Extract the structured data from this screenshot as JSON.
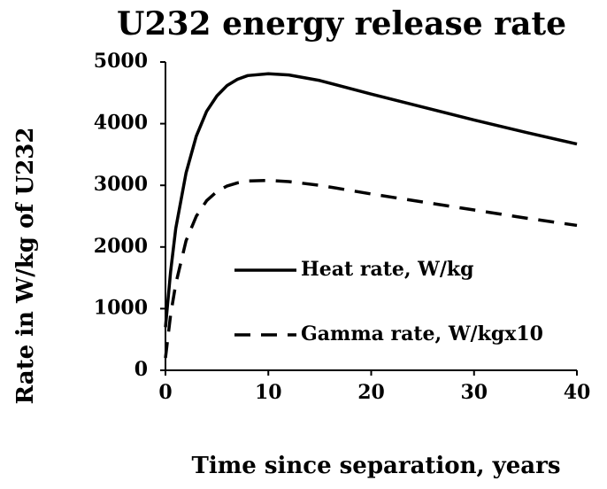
{
  "chart_data": {
    "type": "line",
    "title": "U232 energy release rate",
    "x_label": "Time since separation, years",
    "y_label": "Rate in W/kg of U232",
    "x": [
      0,
      0.5,
      1,
      2,
      3,
      4,
      5,
      6,
      7,
      8,
      10,
      12,
      15,
      20,
      25,
      30,
      35,
      40
    ],
    "series": [
      {
        "name": "Heat rate, W/kg",
        "color": "#000000",
        "dash": "solid",
        "values": [
          700,
          1600,
          2300,
          3200,
          3800,
          4200,
          4450,
          4620,
          4720,
          4780,
          4810,
          4790,
          4700,
          4480,
          4270,
          4060,
          3860,
          3670
        ]
      },
      {
        "name": "Gamma rate, W/kgx10",
        "color": "#000000",
        "dash": "dashed",
        "values": [
          200,
          900,
          1400,
          2100,
          2500,
          2750,
          2900,
          2990,
          3040,
          3070,
          3080,
          3060,
          3000,
          2860,
          2730,
          2600,
          2470,
          2350
        ]
      }
    ],
    "xlim": [
      0,
      40
    ],
    "xticks": [
      0,
      10,
      20,
      30,
      40
    ],
    "ylim": [
      0,
      5000
    ],
    "yticks": [
      0,
      1000,
      2000,
      3000,
      4000,
      5000
    ],
    "grid": false
  }
}
